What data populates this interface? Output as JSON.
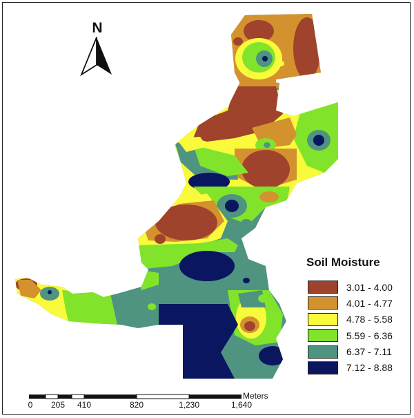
{
  "north": {
    "label": "N"
  },
  "legend": {
    "title": "Soil Moisture",
    "classes": [
      {
        "label": "3.01 - 4.00",
        "color": "#a0432c"
      },
      {
        "label": "4.01 - 4.77",
        "color": "#d4922e"
      },
      {
        "label": "4.78 - 5.58",
        "color": "#fafa3c"
      },
      {
        "label": "5.59 - 6.36",
        "color": "#82e42a"
      },
      {
        "label": "6.37 - 7.11",
        "color": "#4e9480"
      },
      {
        "label": "7.12 - 8.88",
        "color": "#0a1660"
      }
    ]
  },
  "scale_bar": {
    "unit": "Meters",
    "ticks": [
      "0",
      "205",
      "410",
      "820",
      "1,230",
      "1,640"
    ]
  }
}
